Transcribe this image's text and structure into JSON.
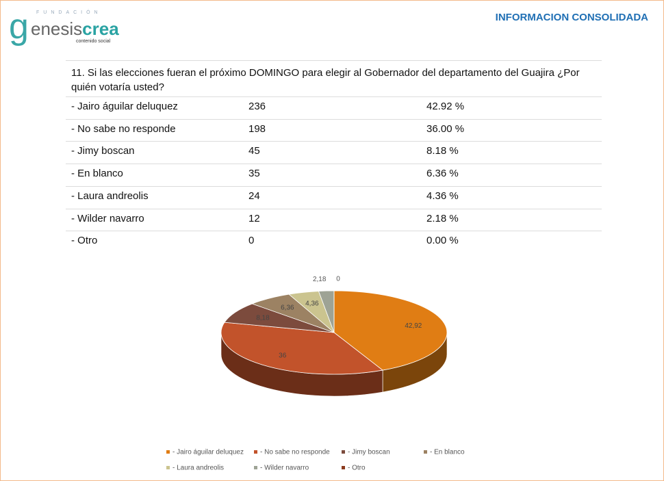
{
  "header": {
    "logo_top": "FUNDACIÓN",
    "logo_g": "g",
    "logo_a": "enesis",
    "logo_b": "crea",
    "logo_sub": "contenido social",
    "title": "INFORMACION CONSOLIDADA"
  },
  "question": "11. Si las elecciones fueran el próximo DOMINGO para elegir al Gobernador del departamento del Guajira ¿Por quién votaría usted?",
  "table": {
    "rows": [
      [
        "- Jairo águilar deluquez",
        "236",
        "42.92 %"
      ],
      [
        "- No sabe no responde",
        "198",
        "36.00 %"
      ],
      [
        "- Jimy boscan",
        "45",
        "8.18 %"
      ],
      [
        "- En blanco",
        "35",
        "6.36 %"
      ],
      [
        "- Laura andreolis",
        "24",
        "4.36 %"
      ],
      [
        "- Wilder navarro",
        "12",
        "2.18 %"
      ],
      [
        "- Otro",
        "0",
        "0.00 %"
      ]
    ]
  },
  "chart_data": {
    "type": "pie",
    "categories": [
      "- Jairo águilar deluquez",
      "- No sabe no responde",
      "- Jimy boscan",
      "- En blanco",
      "- Laura andreolis",
      "- Wilder navarro",
      "- Otro"
    ],
    "values": [
      42.92,
      36,
      8.18,
      6.36,
      4.36,
      2.18,
      0
    ],
    "value_labels": [
      "42,92",
      "36",
      "8,18",
      "6,36",
      "4,36",
      "2,18",
      "0"
    ],
    "colors": [
      "#e07d14",
      "#c2532b",
      "#7c4b3d",
      "#9c8263",
      "#cbc48f",
      "#9ea395",
      "#8b3b1f"
    ]
  }
}
